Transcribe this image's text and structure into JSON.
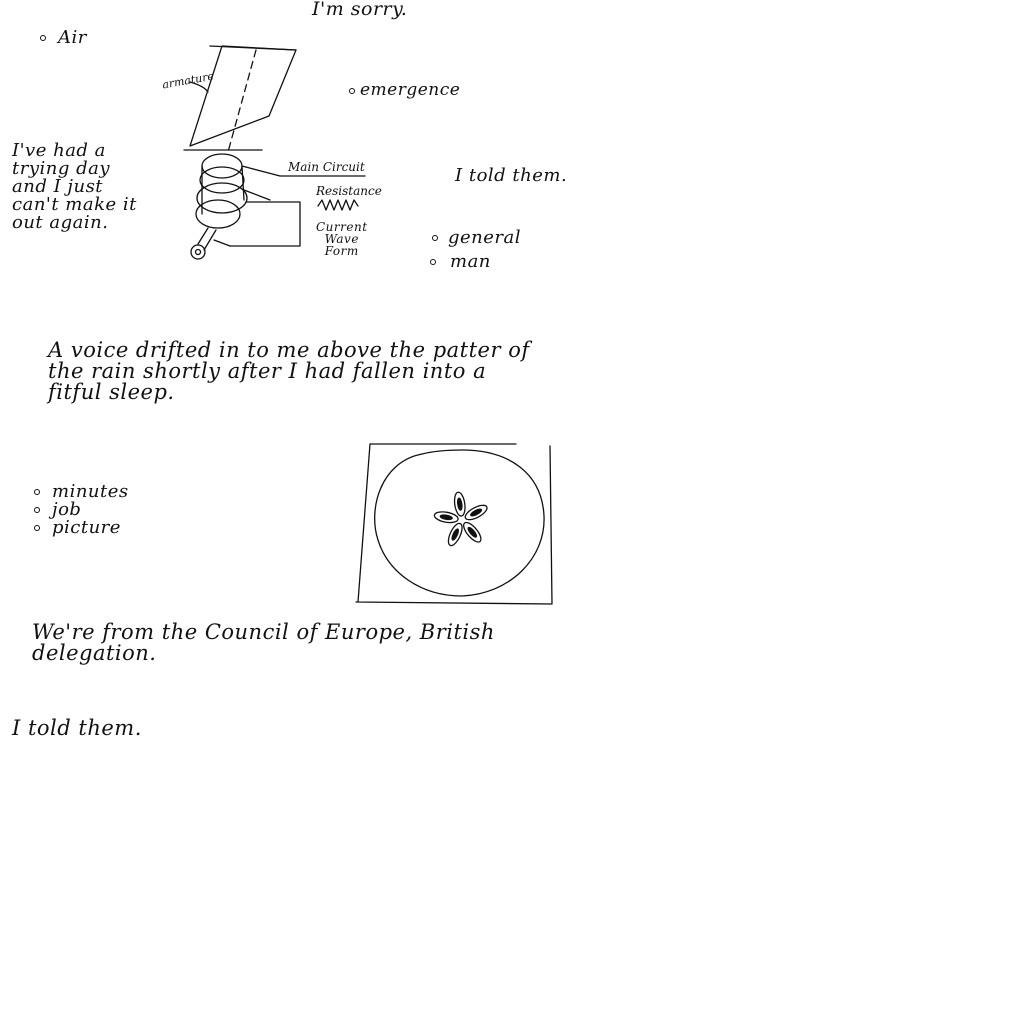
{
  "header": {
    "sorry": "I'm sorry."
  },
  "notes": {
    "air": "Air",
    "emergence": "emergence",
    "trying_day": [
      "I've had a",
      "trying day",
      "and I just",
      "can't make it",
      "out again."
    ],
    "told_them_right": "I told them.",
    "general": "general",
    "man": "man",
    "paragraph": [
      "A voice drifted in to me above the patter of",
      "the rain shortly after I had fallen into a",
      "fitful sleep."
    ],
    "list": [
      "minutes",
      "job",
      "picture"
    ],
    "council": [
      "We're from the Council of Europe, British",
      "delegation."
    ],
    "told_them_bottom": "I told them."
  },
  "diagram": {
    "armature": "armature",
    "main_circuit": "Main Circuit",
    "resistance": "Resistance",
    "current_wave_form": [
      "Current",
      "Wave",
      "Form"
    ]
  },
  "sketch": {
    "name": "apple-cross-section"
  }
}
